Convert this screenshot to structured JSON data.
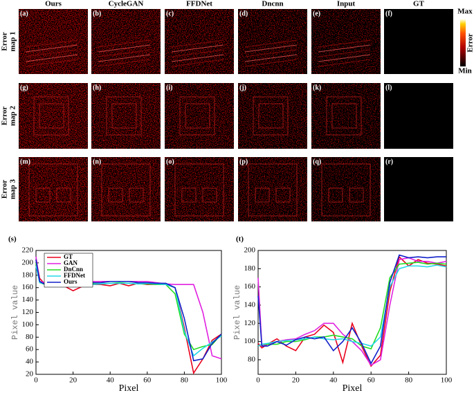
{
  "figure": {
    "columns": [
      "Ours",
      "CycleGAN",
      "FFDNet",
      "Dncnn",
      "Input",
      "GT"
    ],
    "rows": [
      [
        "Error",
        "map 1"
      ],
      [
        "Error",
        "map 2"
      ],
      [
        "Error",
        "map 3"
      ]
    ],
    "panels": [
      "(a)",
      "(b)",
      "(c)",
      "(d)",
      "(e)",
      "(f)",
      "(g)",
      "(h)",
      "(i)",
      "(j)",
      "(k)",
      "(l)",
      "(m)",
      "(n)",
      "(o)",
      "(p)",
      "(q)",
      "(r)"
    ],
    "colorbar": {
      "max": "Max",
      "min": "Min",
      "label": "Error"
    }
  },
  "chart_data": [
    {
      "type": "line",
      "label": "(s)",
      "xlabel": "Pixel",
      "ylabel": "Pixel value",
      "x": [
        0,
        2,
        5,
        10,
        15,
        20,
        25,
        30,
        35,
        40,
        45,
        50,
        55,
        60,
        65,
        70,
        75,
        80,
        85,
        90,
        95,
        100
      ],
      "xlim": [
        0,
        100
      ],
      "xticks": [
        0,
        20,
        40,
        60,
        80,
        100
      ],
      "ylim": [
        20,
        220
      ],
      "yticks": [
        20,
        40,
        60,
        80,
        100,
        120,
        140,
        160,
        180,
        200,
        220
      ],
      "series": [
        {
          "name": "GT",
          "color": "#e8001c",
          "values": [
            205,
            175,
            165,
            165,
            163,
            155,
            162,
            165,
            165,
            163,
            167,
            163,
            167,
            165,
            165,
            165,
            160,
            95,
            22,
            45,
            75,
            85
          ]
        },
        {
          "name": "GAN",
          "color": "#e020e0",
          "values": [
            210,
            170,
            168,
            170,
            168,
            168,
            168,
            170,
            170,
            170,
            170,
            170,
            170,
            170,
            168,
            166,
            165,
            165,
            165,
            120,
            50,
            45
          ]
        },
        {
          "name": "DnCnn",
          "color": "#22dd22",
          "values": [
            200,
            168,
            165,
            166,
            165,
            163,
            165,
            166,
            166,
            167,
            168,
            167,
            166,
            166,
            165,
            165,
            150,
            85,
            60,
            65,
            68,
            85
          ]
        },
        {
          "name": "FFDNet",
          "color": "#22d8e8",
          "values": [
            195,
            168,
            166,
            166,
            164,
            163,
            165,
            165,
            166,
            167,
            167,
            167,
            166,
            167,
            166,
            165,
            160,
            90,
            50,
            62,
            72,
            82
          ]
        },
        {
          "name": "Ours",
          "color": "#1020c8",
          "values": [
            205,
            170,
            165,
            165,
            165,
            165,
            167,
            168,
            168,
            170,
            170,
            170,
            168,
            168,
            167,
            167,
            160,
            110,
            42,
            45,
            70,
            85
          ]
        }
      ]
    },
    {
      "type": "line",
      "label": "(t)",
      "xlabel": "Pixel",
      "ylabel": "Pixel value",
      "x": [
        0,
        2,
        5,
        10,
        15,
        20,
        25,
        30,
        35,
        40,
        45,
        50,
        55,
        60,
        65,
        70,
        75,
        80,
        85,
        90,
        95,
        100
      ],
      "xlim": [
        0,
        100
      ],
      "xticks": [
        0,
        20,
        40,
        60,
        80,
        100
      ],
      "ylim": [
        64,
        200
      ],
      "yticks": [
        80,
        100,
        120,
        140,
        160,
        180,
        200
      ],
      "series": [
        {
          "color": "#e8001c",
          "values": [
            98,
            93,
            97,
            103,
            95,
            90,
            105,
            108,
            118,
            110,
            77,
            120,
            95,
            73,
            85,
            155,
            193,
            183,
            190,
            186,
            185,
            183
          ]
        },
        {
          "color": "#e020e0",
          "values": [
            170,
            95,
            97,
            100,
            102,
            103,
            108,
            112,
            120,
            120,
            108,
            100,
            90,
            74,
            80,
            140,
            190,
            192,
            188,
            188,
            186,
            188
          ]
        },
        {
          "color": "#22dd22",
          "values": [
            95,
            97,
            97,
            97,
            100,
            100,
            102,
            105,
            105,
            107,
            105,
            103,
            95,
            92,
            115,
            170,
            185,
            186,
            187,
            185,
            186,
            185
          ]
        },
        {
          "color": "#22d8e8",
          "values": [
            95,
            97,
            98,
            100,
            101,
            102,
            103,
            105,
            103,
            102,
            103,
            100,
            98,
            95,
            105,
            160,
            180,
            183,
            183,
            182,
            184,
            182
          ]
        },
        {
          "color": "#1020c8",
          "values": [
            150,
            95,
            95,
            100,
            96,
            102,
            105,
            103,
            105,
            90,
            100,
            115,
            98,
            76,
            95,
            165,
            195,
            192,
            193,
            192,
            193,
            193
          ]
        }
      ]
    }
  ]
}
